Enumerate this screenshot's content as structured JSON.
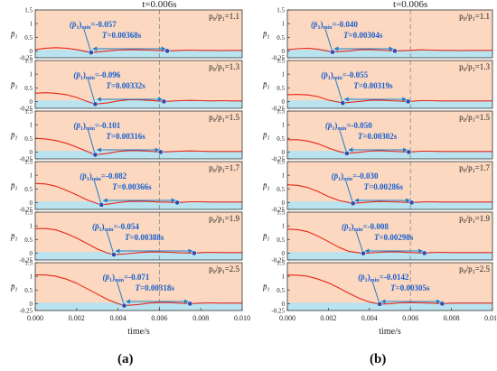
{
  "caption_left": "(a)",
  "caption_right": "(b)",
  "chart_data": [
    {
      "type": "line",
      "panel": "(a)",
      "marker_label": "t=0.006s",
      "marker_x": 0.006,
      "xlabel": "time/s",
      "ylabel_symbol": "p̄",
      "ylabel_sub": "1",
      "xlim": [
        0,
        0.01
      ],
      "ylim": [
        -0.25,
        1.5
      ],
      "xticks": [
        "0.000",
        "0.002",
        "0.004",
        "0.006",
        "0.008",
        "0.010"
      ],
      "yticks": [
        "-0.25",
        "0",
        "0.5",
        "1",
        "1.5"
      ],
      "colors": {
        "line": "#e8261c",
        "band": "#b9e3ef",
        "background": "#fbd8bf",
        "arrow": "#1e7fc9",
        "point": "#2a4fb0",
        "label": "#1a5fd0"
      },
      "subplots": [
        {
          "ratio_prefix": "p",
          "ratio_sub0": "0",
          "ratio_sep": "/p",
          "ratio_sub1": "1",
          "ratio_value": "=1.1",
          "min_prefix": "(p̄",
          "min_sub1": "1",
          "min_close": ")",
          "min_sub2": "min",
          "min_value": "=-0.057",
          "period_t": "T",
          "period_value": "=0.00368s",
          "t_min": 0.0027,
          "t_end": 0.00638,
          "x": [
            0,
            0.0005,
            0.001,
            0.0015,
            0.002,
            0.0025,
            0.0027,
            0.003,
            0.0035,
            0.004,
            0.0045,
            0.005,
            0.0055,
            0.006,
            0.00638,
            0.007,
            0.0075,
            0.008,
            0.0085,
            0.009,
            0.0095,
            0.01
          ],
          "y": [
            0.05,
            0.1,
            0.12,
            0.1,
            0.05,
            -0.03,
            -0.057,
            -0.04,
            0.0,
            0.03,
            0.04,
            0.04,
            0.03,
            0.01,
            0.0,
            0.02,
            0.03,
            0.02,
            0.02,
            0.01,
            0.02,
            0.02
          ]
        },
        {
          "ratio_prefix": "p",
          "ratio_sub0": "0",
          "ratio_sep": "/p",
          "ratio_sub1": "1",
          "ratio_value": "=1.3",
          "min_prefix": "(p̄",
          "min_sub1": "1",
          "min_close": ")",
          "min_sub2": "min",
          "min_value": "=-0.096",
          "period_t": "T",
          "period_value": "=0.00332s",
          "t_min": 0.0029,
          "t_end": 0.00622,
          "x": [
            0,
            0.0005,
            0.001,
            0.0015,
            0.002,
            0.0025,
            0.0029,
            0.0035,
            0.004,
            0.0045,
            0.005,
            0.0055,
            0.006,
            0.00622,
            0.007,
            0.0075,
            0.008,
            0.0085,
            0.009,
            0.0095,
            0.01
          ],
          "y": [
            0.3,
            0.32,
            0.3,
            0.25,
            0.15,
            0.0,
            -0.096,
            -0.05,
            0.02,
            0.06,
            0.06,
            0.04,
            0.01,
            0.0,
            0.03,
            0.04,
            0.03,
            0.02,
            0.03,
            0.02,
            0.02
          ]
        },
        {
          "ratio_prefix": "p",
          "ratio_sub0": "0",
          "ratio_sep": "/p",
          "ratio_sub1": "1",
          "ratio_value": "=1.5",
          "min_prefix": "(p̄",
          "min_sub1": "1",
          "min_close": ")",
          "min_sub2": "min",
          "min_value": "=-0.101",
          "period_t": "T",
          "period_value": "=0.00316s",
          "t_min": 0.0029,
          "t_end": 0.00606,
          "x": [
            0,
            0.0005,
            0.001,
            0.0015,
            0.002,
            0.0025,
            0.0029,
            0.0035,
            0.004,
            0.0045,
            0.005,
            0.0055,
            0.00606,
            0.007,
            0.0075,
            0.008,
            0.0085,
            0.009,
            0.0095,
            0.01
          ],
          "y": [
            0.5,
            0.48,
            0.42,
            0.32,
            0.18,
            0.02,
            -0.101,
            -0.05,
            0.02,
            0.05,
            0.05,
            0.03,
            0.0,
            0.03,
            0.04,
            0.03,
            0.02,
            0.02,
            0.02,
            0.02
          ]
        },
        {
          "ratio_prefix": "p",
          "ratio_sub0": "0",
          "ratio_sep": "/p",
          "ratio_sub1": "1",
          "ratio_value": "=1.7",
          "min_prefix": "(p̄",
          "min_sub1": "1",
          "min_close": ")",
          "min_sub2": "min",
          "min_value": "=-0.082",
          "period_t": "T",
          "period_value": "=0.00366s",
          "t_min": 0.0032,
          "t_end": 0.00686,
          "x": [
            0,
            0.0005,
            0.001,
            0.0015,
            0.002,
            0.0025,
            0.003,
            0.0032,
            0.0035,
            0.004,
            0.0045,
            0.005,
            0.0055,
            0.006,
            0.0065,
            0.00686,
            0.0075,
            0.008,
            0.0085,
            0.009,
            0.0095,
            0.01
          ],
          "y": [
            0.7,
            0.68,
            0.6,
            0.45,
            0.28,
            0.1,
            -0.04,
            -0.082,
            -0.06,
            0.0,
            0.04,
            0.05,
            0.04,
            0.02,
            0.01,
            0.0,
            0.03,
            0.03,
            0.02,
            0.02,
            0.02,
            0.02
          ]
        },
        {
          "ratio_prefix": "p",
          "ratio_sub0": "0",
          "ratio_sep": "/p",
          "ratio_sub1": "1",
          "ratio_value": "=1.9",
          "min_prefix": "(p̄",
          "min_sub1": "1",
          "min_close": ")",
          "min_sub2": "min",
          "min_value": "=-0.054",
          "period_t": "T",
          "period_value": "=0.00388s",
          "t_min": 0.0038,
          "t_end": 0.00768,
          "x": [
            0,
            0.0005,
            0.001,
            0.0015,
            0.002,
            0.0025,
            0.003,
            0.0035,
            0.0038,
            0.0045,
            0.005,
            0.0055,
            0.006,
            0.0065,
            0.007,
            0.00768,
            0.008,
            0.0085,
            0.009,
            0.0095,
            0.01
          ],
          "y": [
            0.9,
            0.9,
            0.85,
            0.72,
            0.55,
            0.35,
            0.15,
            0.0,
            -0.054,
            -0.02,
            0.02,
            0.04,
            0.04,
            0.03,
            0.01,
            0.0,
            0.02,
            0.03,
            0.02,
            0.02,
            0.02
          ]
        },
        {
          "ratio_prefix": "p",
          "ratio_sub0": "0",
          "ratio_sep": "/p",
          "ratio_sub1": "1",
          "ratio_value": "=2.5",
          "min_prefix": "(p̄",
          "min_sub1": "1",
          "min_close": ")",
          "min_sub2": "min",
          "min_value": "=-0.071",
          "period_t": "T",
          "period_value": "=0.00318s",
          "t_min": 0.0043,
          "t_end": 0.00748,
          "x": [
            0,
            0.0005,
            0.001,
            0.0015,
            0.002,
            0.0025,
            0.003,
            0.0035,
            0.004,
            0.0043,
            0.005,
            0.0055,
            0.006,
            0.0065,
            0.007,
            0.00748,
            0.008,
            0.0085,
            0.009,
            0.0095,
            0.01
          ],
          "y": [
            1.05,
            1.05,
            1.0,
            0.9,
            0.75,
            0.55,
            0.35,
            0.15,
            0.0,
            -0.071,
            -0.03,
            0.02,
            0.04,
            0.04,
            0.02,
            0.0,
            0.02,
            0.03,
            0.02,
            0.02,
            0.02
          ]
        }
      ]
    },
    {
      "type": "line",
      "panel": "(b)",
      "marker_label": "t=0.006s",
      "marker_x": 0.006,
      "xlabel": "time/s",
      "ylabel_symbol": "p̄",
      "ylabel_sub": "1",
      "xlim": [
        0,
        0.01
      ],
      "ylim": [
        -0.25,
        1.5
      ],
      "xticks": [
        "0.000",
        "0.002",
        "0.004",
        "0.006",
        "0.008",
        "0.010"
      ],
      "yticks": [
        "-0.25",
        "0",
        "0.5",
        "1",
        "1.5"
      ],
      "colors": {
        "line": "#e8261c",
        "band": "#b9e3ef",
        "background": "#fbd8bf",
        "arrow": "#1e7fc9",
        "point": "#2a4fb0",
        "label": "#1a5fd0"
      },
      "subplots": [
        {
          "ratio_prefix": "p",
          "ratio_sub0": "0",
          "ratio_sep": "/p",
          "ratio_sub1": "1",
          "ratio_value": "=1.1",
          "min_prefix": "(p̄",
          "min_sub1": "1",
          "min_close": ")",
          "min_sub2": "min",
          "min_value": "=-0.040",
          "period_t": "T",
          "period_value": "=0.00304s",
          "t_min": 0.0022,
          "t_end": 0.00524,
          "x": [
            0,
            0.0005,
            0.001,
            0.0015,
            0.0022,
            0.003,
            0.0035,
            0.004,
            0.0045,
            0.00524,
            0.006,
            0.0065,
            0.007,
            0.0075,
            0.008,
            0.0085,
            0.009,
            0.0095,
            0.01
          ],
          "y": [
            0.05,
            0.08,
            0.1,
            0.06,
            -0.04,
            0.0,
            0.04,
            0.05,
            0.03,
            0.0,
            0.02,
            0.04,
            0.03,
            0.02,
            0.02,
            0.01,
            0.02,
            0.02,
            0.02
          ]
        },
        {
          "ratio_prefix": "p",
          "ratio_sub0": "0",
          "ratio_sep": "/p",
          "ratio_sub1": "1",
          "ratio_value": "=1.3",
          "min_prefix": "(p̄",
          "min_sub1": "1",
          "min_close": ")",
          "min_sub2": "min",
          "min_value": "=-0.055",
          "period_t": "T",
          "period_value": "=0.00319s",
          "t_min": 0.0027,
          "t_end": 0.00589,
          "x": [
            0,
            0.0005,
            0.001,
            0.0015,
            0.002,
            0.0027,
            0.0035,
            0.004,
            0.0045,
            0.005,
            0.00589,
            0.0065,
            0.007,
            0.0075,
            0.008,
            0.0085,
            0.009,
            0.0095,
            0.01
          ],
          "y": [
            0.25,
            0.26,
            0.24,
            0.18,
            0.05,
            -0.055,
            0.0,
            0.04,
            0.05,
            0.03,
            0.0,
            0.03,
            0.03,
            0.02,
            0.02,
            0.02,
            0.02,
            0.02,
            0.02
          ]
        },
        {
          "ratio_prefix": "p",
          "ratio_sub0": "0",
          "ratio_sep": "/p",
          "ratio_sub1": "1",
          "ratio_value": "=1.5",
          "min_prefix": "(p̄",
          "min_sub1": "1",
          "min_close": ")",
          "min_sub2": "min",
          "min_value": "=-0.050",
          "period_t": "T",
          "period_value": "=0.00302s",
          "t_min": 0.0029,
          "t_end": 0.00592,
          "x": [
            0,
            0.0005,
            0.001,
            0.0015,
            0.002,
            0.0025,
            0.0029,
            0.0035,
            0.004,
            0.0045,
            0.005,
            0.00592,
            0.0065,
            0.007,
            0.0075,
            0.008,
            0.0085,
            0.009,
            0.0095,
            0.01
          ],
          "y": [
            0.45,
            0.45,
            0.4,
            0.3,
            0.15,
            0.02,
            -0.05,
            -0.01,
            0.03,
            0.05,
            0.03,
            0.0,
            0.03,
            0.03,
            0.02,
            0.02,
            0.02,
            0.02,
            0.02,
            0.02
          ]
        },
        {
          "ratio_prefix": "p",
          "ratio_sub0": "0",
          "ratio_sep": "/p",
          "ratio_sub1": "1",
          "ratio_value": "=1.7",
          "min_prefix": "(p̄",
          "min_sub1": "1",
          "min_close": ")",
          "min_sub2": "min",
          "min_value": "=-0.030",
          "period_t": "T",
          "period_value": "=0.00286s",
          "t_min": 0.0032,
          "t_end": 0.00606,
          "x": [
            0,
            0.0005,
            0.001,
            0.0015,
            0.002,
            0.0025,
            0.0032,
            0.004,
            0.0045,
            0.005,
            0.0055,
            0.00606,
            0.0065,
            0.007,
            0.0075,
            0.008,
            0.0085,
            0.009,
            0.0095,
            0.01
          ],
          "y": [
            0.65,
            0.63,
            0.55,
            0.4,
            0.22,
            0.08,
            -0.03,
            0.02,
            0.04,
            0.03,
            0.02,
            0.0,
            0.02,
            0.03,
            0.02,
            0.02,
            0.02,
            0.02,
            0.02,
            0.02
          ]
        },
        {
          "ratio_prefix": "p",
          "ratio_sub0": "0",
          "ratio_sep": "/p",
          "ratio_sub1": "1",
          "ratio_value": "=1.9",
          "min_prefix": "(p̄",
          "min_sub1": "1",
          "min_close": ")",
          "min_sub2": "min",
          "min_value": "=-0.008",
          "period_t": "T",
          "period_value": "=0.00298s",
          "t_min": 0.0037,
          "t_end": 0.00668,
          "x": [
            0,
            0.0005,
            0.001,
            0.0015,
            0.002,
            0.0025,
            0.003,
            0.0037,
            0.0045,
            0.005,
            0.0055,
            0.006,
            0.00668,
            0.007,
            0.0075,
            0.008,
            0.0085,
            0.009,
            0.0095,
            0.01
          ],
          "y": [
            0.88,
            0.86,
            0.78,
            0.62,
            0.42,
            0.22,
            0.06,
            -0.008,
            0.03,
            0.05,
            0.04,
            0.02,
            0.0,
            0.02,
            0.03,
            0.02,
            0.02,
            0.02,
            0.02,
            0.02
          ]
        },
        {
          "ratio_prefix": "p",
          "ratio_sub0": "0",
          "ratio_sep": "/p",
          "ratio_sub1": "1",
          "ratio_value": "=2.5",
          "min_prefix": "(p̄",
          "min_sub1": "1",
          "min_close": ")",
          "min_sub2": "min",
          "min_value": "=-0.0142",
          "period_t": "T",
          "period_value": "=0.00305s",
          "t_min": 0.0045,
          "t_end": 0.00755,
          "x": [
            0,
            0.0005,
            0.001,
            0.0015,
            0.002,
            0.0025,
            0.003,
            0.0035,
            0.004,
            0.0045,
            0.005,
            0.0055,
            0.006,
            0.0065,
            0.007,
            0.00755,
            0.008,
            0.0085,
            0.009,
            0.0095,
            0.01
          ],
          "y": [
            1.05,
            1.04,
            1.0,
            0.9,
            0.76,
            0.58,
            0.38,
            0.2,
            0.06,
            -0.014,
            0.0,
            0.03,
            0.04,
            0.03,
            0.02,
            0.0,
            0.02,
            0.02,
            0.02,
            0.02,
            0.02
          ]
        }
      ]
    }
  ]
}
